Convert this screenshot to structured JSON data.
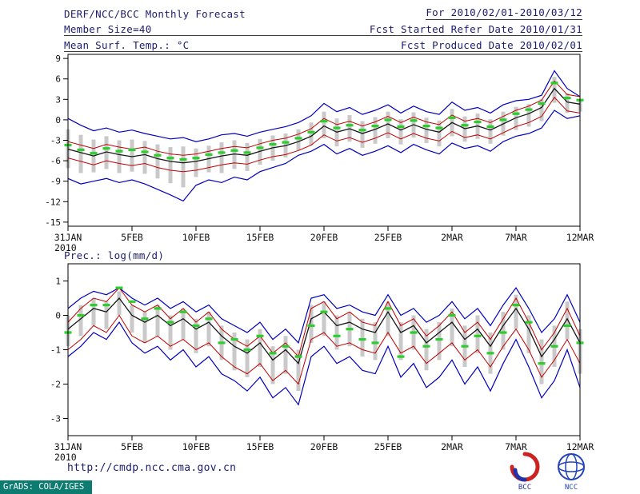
{
  "header": {
    "title": "DERF/NCC/BCC Monthly Forecast",
    "member_size": "Member Size=40",
    "variable_label": "Mean Surf. Temp.: °C",
    "for_range": "For 2010/02/01-2010/03/12",
    "fcst_started": "Fcst Started Refer Date 2010/01/31",
    "fcst_produced": "Fcst Produced Date 2010/02/01"
  },
  "footer": {
    "url": "http://cmdp.ncc.cma.gov.cn",
    "grads_credit": "GrADS: COLA/IGES",
    "logos": [
      {
        "name": "bcc",
        "label": "BCC"
      },
      {
        "name": "ncc",
        "label": "NCC"
      }
    ]
  },
  "colors": {
    "header_text": "#1c1c6e",
    "axis_text": "#111111",
    "envelope_blue": "#0000bb",
    "quantile_red": "#c00000",
    "mean_black": "#161616",
    "obs_green": "#2ecc2e",
    "spread_gray": "#c9c9c9",
    "grads_strip": "#0c7b70"
  },
  "chart_data": [
    {
      "type": "line",
      "title": "Mean Surf. Temp.: °C",
      "x_tick_labels": [
        "31JAN",
        "5FEB",
        "10FEB",
        "15FEB",
        "20FEB",
        "25FEB",
        "2MAR",
        "7MAR",
        "12MAR"
      ],
      "x_tick_positions": [
        0,
        5,
        10,
        15,
        20,
        25,
        30,
        35,
        40
      ],
      "x_sub_label": "2010",
      "ylim": [
        -15.6,
        9.6
      ],
      "yticks": [
        9,
        6,
        3,
        0,
        -3,
        -6,
        -9,
        -12,
        -15
      ],
      "series": [
        {
          "name": "ensemble-max",
          "color": "#0000bb",
          "width": 1.2,
          "values": [
            0.2,
            -0.8,
            -1.6,
            -1.2,
            -1.8,
            -1.5,
            -2.0,
            -2.4,
            -2.8,
            -2.6,
            -3.2,
            -2.8,
            -2.2,
            -2.0,
            -2.4,
            -1.8,
            -1.4,
            -1.0,
            -0.4,
            0.6,
            2.4,
            1.2,
            1.8,
            0.8,
            1.4,
            2.2,
            1.0,
            2.0,
            1.2,
            0.8,
            2.6,
            1.4,
            1.8,
            1.0,
            2.2,
            2.8,
            3.0,
            3.6,
            7.2,
            4.6,
            3.4
          ]
        },
        {
          "name": "ensemble-min",
          "color": "#0000bb",
          "width": 1.2,
          "values": [
            -8.6,
            -9.4,
            -9.0,
            -8.6,
            -9.2,
            -8.8,
            -9.4,
            -10.2,
            -11.0,
            -11.9,
            -9.6,
            -8.8,
            -9.2,
            -8.4,
            -8.8,
            -7.6,
            -7.0,
            -6.4,
            -5.2,
            -4.6,
            -3.6,
            -5.0,
            -4.2,
            -5.2,
            -4.6,
            -3.8,
            -4.8,
            -3.6,
            -4.4,
            -5.0,
            -3.4,
            -4.2,
            -3.8,
            -4.6,
            -3.2,
            -2.4,
            -2.0,
            -1.2,
            1.4,
            0.2,
            0.6
          ]
        },
        {
          "name": "upper-quartile",
          "color": "#c00000",
          "width": 1,
          "values": [
            -3.2,
            -3.7,
            -4.2,
            -3.6,
            -4.0,
            -4.3,
            -4.0,
            -4.6,
            -5.0,
            -5.2,
            -5.0,
            -4.6,
            -4.2,
            -3.9,
            -4.1,
            -3.5,
            -3.0,
            -2.7,
            -2.1,
            -1.3,
            0.2,
            -0.7,
            -0.2,
            -0.9,
            -0.3,
            0.5,
            -0.4,
            0.4,
            -0.3,
            -0.7,
            0.7,
            -0.2,
            0.2,
            -0.4,
            0.5,
            1.4,
            2.0,
            2.9,
            5.7,
            3.7,
            3.4
          ]
        },
        {
          "name": "lower-quartile",
          "color": "#c00000",
          "width": 1,
          "values": [
            -5.6,
            -6.1,
            -6.6,
            -6.0,
            -6.4,
            -6.7,
            -6.4,
            -7.0,
            -7.4,
            -7.6,
            -7.4,
            -7.0,
            -6.6,
            -6.3,
            -6.5,
            -5.9,
            -5.4,
            -5.1,
            -4.5,
            -3.7,
            -2.2,
            -3.1,
            -2.6,
            -3.3,
            -2.7,
            -1.9,
            -2.8,
            -2.0,
            -2.7,
            -3.1,
            -1.7,
            -2.6,
            -2.2,
            -2.8,
            -1.9,
            -1.0,
            -0.4,
            0.5,
            3.3,
            1.3,
            1.0
          ]
        },
        {
          "name": "ensemble-mean",
          "color": "#161616",
          "width": 1.3,
          "values": [
            -4.3,
            -4.8,
            -5.3,
            -4.7,
            -5.1,
            -5.4,
            -5.1,
            -5.7,
            -6.1,
            -6.3,
            -6.1,
            -5.7,
            -5.3,
            -5.0,
            -5.2,
            -4.6,
            -4.1,
            -3.8,
            -3.2,
            -2.4,
            -0.9,
            -1.8,
            -1.3,
            -2.0,
            -1.4,
            -0.6,
            -1.5,
            -0.7,
            -1.4,
            -1.8,
            -0.4,
            -1.3,
            -0.9,
            -1.5,
            -0.6,
            0.3,
            0.9,
            1.8,
            4.6,
            2.6,
            2.3
          ]
        }
      ],
      "markers": {
        "name": "median-marks",
        "color": "#2ecc2e",
        "values": [
          -3.7,
          -4.4,
          -4.9,
          -4.2,
          -4.6,
          -4.4,
          -4.7,
          -5.2,
          -5.6,
          -5.8,
          -5.6,
          -5.1,
          -4.8,
          -4.5,
          -4.8,
          -4.1,
          -3.6,
          -3.3,
          -2.7,
          -1.8,
          -0.2,
          -1.2,
          -0.8,
          -1.5,
          -0.9,
          0.0,
          -1.0,
          -0.1,
          -0.9,
          -1.2,
          0.3,
          -0.8,
          -0.3,
          -1.0,
          0.0,
          0.9,
          1.5,
          2.4,
          5.4,
          3.2,
          2.9
        ]
      },
      "bars": {
        "color": "#c9c9c9",
        "high": [
          -1.4,
          -2.2,
          -2.9,
          -2.4,
          -3.0,
          -2.9,
          -3.1,
          -3.6,
          -4.0,
          -3.9,
          -4.2,
          -3.8,
          -3.3,
          -3.0,
          -3.4,
          -2.8,
          -2.3,
          -2.0,
          -1.4,
          -0.4,
          1.2,
          0.2,
          0.7,
          -0.2,
          0.4,
          1.2,
          0.1,
          1.1,
          0.3,
          -0.1,
          1.6,
          0.5,
          0.9,
          0.1,
          1.2,
          1.9,
          2.3,
          3.0,
          6.3,
          3.9,
          3.0
        ],
        "low": [
          -7.1,
          -7.8,
          -7.7,
          -7.2,
          -7.8,
          -7.6,
          -7.9,
          -8.6,
          -9.3,
          -9.9,
          -8.4,
          -7.7,
          -7.8,
          -7.2,
          -7.5,
          -6.6,
          -6.0,
          -5.5,
          -4.5,
          -3.8,
          -2.7,
          -3.9,
          -3.2,
          -4.1,
          -3.5,
          -2.7,
          -3.6,
          -2.6,
          -3.4,
          -3.9,
          -2.4,
          -3.2,
          -2.8,
          -3.5,
          -2.3,
          -1.5,
          -1.0,
          -0.2,
          2.5,
          1.0,
          1.2
        ]
      }
    },
    {
      "type": "line",
      "title": "Prec.: log(mm/d)",
      "x_tick_labels": [
        "31JAN",
        "5FEB",
        "10FEB",
        "15FEB",
        "20FEB",
        "25FEB",
        "2MAR",
        "7MAR",
        "12MAR"
      ],
      "x_tick_positions": [
        0,
        5,
        10,
        15,
        20,
        25,
        30,
        35,
        40
      ],
      "x_sub_label": "2010",
      "ylim": [
        -3.5,
        1.5
      ],
      "yticks": [
        1,
        0,
        -1,
        -2,
        -3
      ],
      "series": [
        {
          "name": "ensemble-max",
          "color": "#0000bb",
          "width": 1.2,
          "values": [
            0.2,
            0.5,
            0.7,
            0.6,
            0.8,
            0.5,
            0.3,
            0.5,
            0.2,
            0.4,
            0.1,
            0.3,
            -0.1,
            -0.3,
            -0.5,
            -0.2,
            -0.7,
            -0.4,
            -0.8,
            0.5,
            0.6,
            0.2,
            0.3,
            0.1,
            0.0,
            0.6,
            0.0,
            0.2,
            -0.2,
            0.0,
            0.4,
            -0.1,
            0.2,
            -0.3,
            0.3,
            0.8,
            0.2,
            -0.5,
            -0.1,
            0.6,
            -0.2
          ]
        },
        {
          "name": "ensemble-min",
          "color": "#0000bb",
          "width": 1.2,
          "values": [
            -1.2,
            -0.9,
            -0.5,
            -0.7,
            -0.2,
            -0.8,
            -1.1,
            -0.9,
            -1.3,
            -1.0,
            -1.5,
            -1.2,
            -1.7,
            -1.9,
            -2.2,
            -1.8,
            -2.4,
            -2.1,
            -2.6,
            -1.2,
            -0.9,
            -1.4,
            -1.2,
            -1.6,
            -1.7,
            -0.9,
            -1.8,
            -1.4,
            -2.1,
            -1.8,
            -1.3,
            -2.0,
            -1.5,
            -2.2,
            -1.4,
            -0.7,
            -1.5,
            -2.4,
            -1.9,
            -1.0,
            -2.1
          ]
        },
        {
          "name": "upper-quartile",
          "color": "#c00000",
          "width": 1,
          "values": [
            -0.2,
            0.2,
            0.5,
            0.4,
            0.8,
            0.3,
            0.1,
            0.3,
            -0.1,
            0.2,
            -0.2,
            0.1,
            -0.4,
            -0.7,
            -0.9,
            -0.6,
            -1.1,
            -0.8,
            -1.2,
            0.2,
            0.4,
            -0.1,
            0.1,
            -0.2,
            -0.3,
            0.4,
            -0.3,
            -0.1,
            -0.6,
            -0.3,
            0.1,
            -0.5,
            -0.2,
            -0.7,
            -0.1,
            0.5,
            -0.2,
            -1.0,
            -0.5,
            0.2,
            -0.6
          ]
        },
        {
          "name": "lower-quartile",
          "color": "#c00000",
          "width": 1,
          "values": [
            -1.0,
            -0.7,
            -0.3,
            -0.5,
            0.0,
            -0.6,
            -0.8,
            -0.6,
            -0.9,
            -0.7,
            -1.0,
            -0.8,
            -1.2,
            -1.5,
            -1.7,
            -1.4,
            -1.9,
            -1.6,
            -2.0,
            -0.7,
            -0.5,
            -0.9,
            -0.8,
            -1.0,
            -1.1,
            -0.5,
            -1.1,
            -0.9,
            -1.4,
            -1.1,
            -0.8,
            -1.3,
            -1.0,
            -1.5,
            -0.9,
            -0.4,
            -1.0,
            -1.8,
            -1.3,
            -0.7,
            -1.4
          ]
        },
        {
          "name": "ensemble-mean",
          "color": "#161616",
          "width": 1.3,
          "values": [
            -0.4,
            -0.1,
            0.2,
            0.1,
            0.5,
            0.0,
            -0.2,
            0.0,
            -0.3,
            -0.1,
            -0.4,
            -0.2,
            -0.6,
            -0.9,
            -1.1,
            -0.8,
            -1.3,
            -1.0,
            -1.4,
            -0.1,
            0.1,
            -0.3,
            -0.2,
            -0.4,
            -0.5,
            0.1,
            -0.5,
            -0.3,
            -0.8,
            -0.5,
            -0.2,
            -0.7,
            -0.4,
            -0.9,
            -0.3,
            0.2,
            -0.4,
            -1.2,
            -0.7,
            -0.1,
            -0.8
          ]
        }
      ],
      "markers": {
        "name": "median-marks",
        "color": "#2ecc2e",
        "values": [
          -0.5,
          0.0,
          0.3,
          0.3,
          0.8,
          0.4,
          -0.1,
          0.2,
          -0.2,
          0.1,
          -0.3,
          -0.1,
          -0.8,
          -0.7,
          -1.0,
          -0.6,
          -1.1,
          -0.9,
          -1.2,
          -0.3,
          0.1,
          -0.6,
          -0.4,
          -0.7,
          -0.8,
          0.2,
          -1.2,
          -0.5,
          -0.9,
          -0.7,
          0.0,
          -0.9,
          -0.6,
          -1.1,
          -0.5,
          0.3,
          -0.2,
          -1.4,
          -0.9,
          -0.3,
          -0.8
        ]
      },
      "bars": {
        "color": "#c9c9c9",
        "high": [
          0.0,
          0.3,
          0.5,
          0.4,
          0.7,
          0.3,
          0.1,
          0.3,
          0.0,
          0.2,
          -0.1,
          0.1,
          -0.3,
          -0.5,
          -0.7,
          -0.4,
          -0.9,
          -0.6,
          -1.0,
          0.3,
          0.4,
          0.0,
          0.1,
          -0.1,
          -0.2,
          0.4,
          -0.2,
          0.0,
          -0.4,
          -0.2,
          0.2,
          -0.3,
          0.0,
          -0.5,
          0.1,
          0.6,
          0.0,
          -0.7,
          -0.3,
          0.4,
          -0.4
        ],
        "low": [
          -0.9,
          -0.6,
          -0.3,
          -0.4,
          0.0,
          -0.5,
          -0.8,
          -0.6,
          -1.0,
          -0.7,
          -1.1,
          -0.9,
          -1.3,
          -1.6,
          -1.8,
          -1.5,
          -2.0,
          -1.7,
          -2.2,
          -0.8,
          -0.6,
          -1.0,
          -0.9,
          -1.2,
          -1.3,
          -0.6,
          -1.3,
          -1.0,
          -1.6,
          -1.3,
          -0.9,
          -1.5,
          -1.1,
          -1.7,
          -1.0,
          -0.4,
          -1.1,
          -2.0,
          -1.5,
          -0.7,
          -1.7
        ]
      }
    }
  ]
}
